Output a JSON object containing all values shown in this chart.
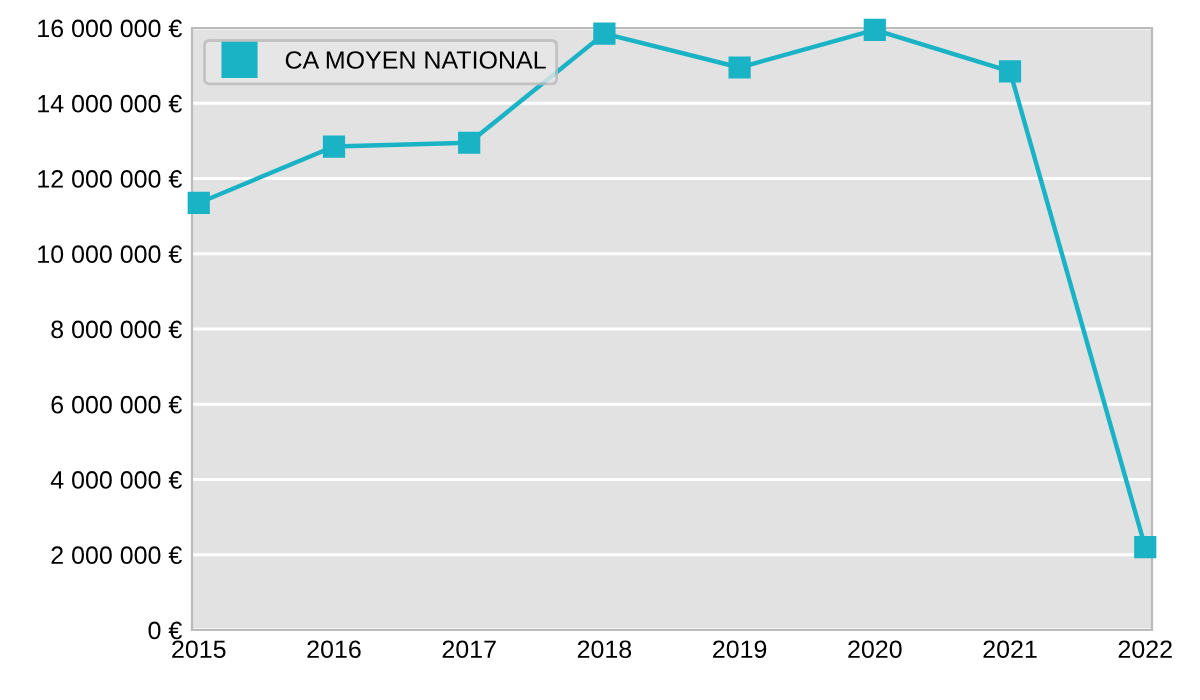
{
  "chart_data": {
    "type": "line",
    "categories": [
      "2015",
      "2016",
      "2017",
      "2018",
      "2019",
      "2020",
      "2021",
      "2022"
    ],
    "series": [
      {
        "name": "CA MOYEN NATIONAL",
        "color": "#1ab3c6",
        "values": [
          11350000,
          12850000,
          12950000,
          15850000,
          14950000,
          15950000,
          14850000,
          2200000
        ]
      }
    ],
    "ylim": [
      0,
      16000000
    ],
    "yticks": [
      {
        "value": 0,
        "label": "0 €"
      },
      {
        "value": 2000000,
        "label": "2 000 000 €"
      },
      {
        "value": 4000000,
        "label": "4 000 000 €"
      },
      {
        "value": 6000000,
        "label": "6 000 000 €"
      },
      {
        "value": 8000000,
        "label": "8 000 000 €"
      },
      {
        "value": 10000000,
        "label": "10 000 000 €"
      },
      {
        "value": 12000000,
        "label": "12 000 000 €"
      },
      {
        "value": 14000000,
        "label": "14 000 000 €"
      },
      {
        "value": 16000000,
        "label": "16 000 000 €"
      }
    ],
    "grid": "y",
    "legend": "top left",
    "marker": "square",
    "line_style": "solid"
  }
}
